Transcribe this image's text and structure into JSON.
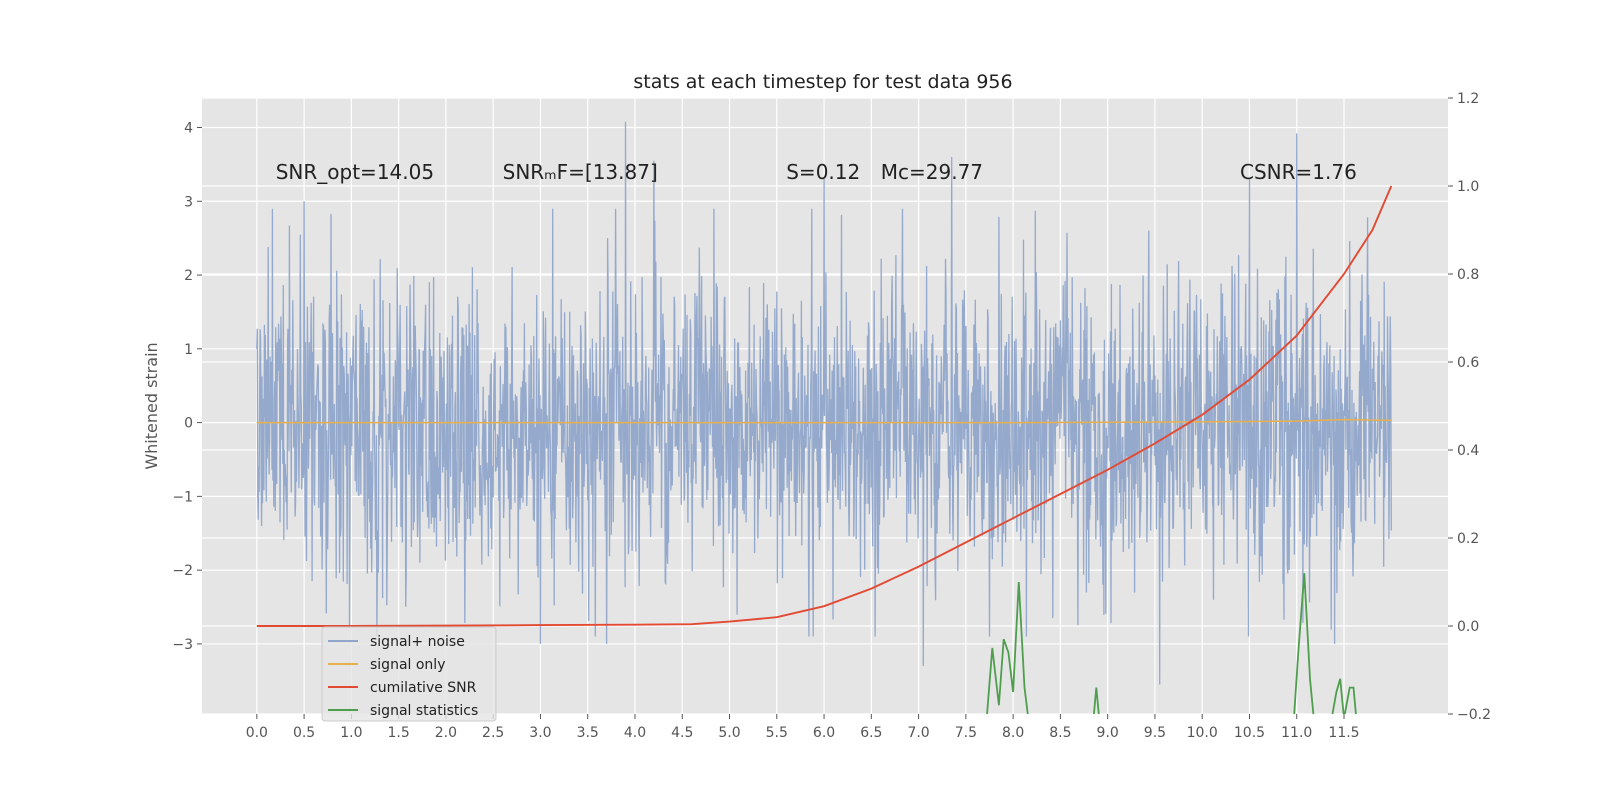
{
  "chart_data": {
    "type": "line",
    "title": "stats at each timestep for test data 956",
    "ylabel": "Whitened strain",
    "ylabel_right": "",
    "xlim": [
      -0.58,
      12.6
    ],
    "ylim": [
      -3.95,
      4.4
    ],
    "ylim_right": [
      -0.2,
      1.2
    ],
    "x_ticks": [
      0.0,
      0.5,
      1.0,
      1.5,
      2.0,
      2.5,
      3.0,
      3.5,
      4.0,
      4.5,
      5.0,
      5.5,
      6.0,
      6.5,
      7.0,
      7.5,
      8.0,
      8.5,
      9.0,
      9.5,
      10.0,
      10.5,
      11.0,
      11.5
    ],
    "x_tick_labels": [
      "0.0",
      "0.5",
      "1.0",
      "1.5",
      "2.0",
      "2.5",
      "3.0",
      "3.5",
      "4.0",
      "4.5",
      "5.0",
      "5.5",
      "6.0",
      "6.5",
      "7.0",
      "7.5",
      "8.0",
      "8.5",
      "9.0",
      "9.5",
      "10.0",
      "10.5",
      "11.0",
      "11.5"
    ],
    "y_ticks": [
      -3,
      -2,
      -1,
      0,
      1,
      2,
      3,
      4
    ],
    "y_tick_labels": [
      "−3",
      "−2",
      "−1",
      "0",
      "1",
      "2",
      "3",
      "4"
    ],
    "y_right_ticks": [
      -0.2,
      0.0,
      0.2,
      0.4,
      0.6,
      0.8,
      1.0,
      1.2
    ],
    "y_right_tick_labels": [
      "−0.2",
      "0.0",
      "0.2",
      "0.4",
      "0.6",
      "0.8",
      "1.0",
      "1.2"
    ],
    "grid": true,
    "legend_position": "lower-left",
    "annotations": [
      {
        "id": "snr-opt",
        "text": "SNR_opt=14.05",
        "x": 0.2,
        "y": 3.3
      },
      {
        "id": "snr-mf",
        "text": "SNRₘF=[13.87]",
        "x": 2.6,
        "y": 3.3
      },
      {
        "id": "s-value",
        "text": "S=0.12",
        "x": 5.6,
        "y": 3.3
      },
      {
        "id": "mc-value",
        "text": "Mᴄ=29.77",
        "x": 6.6,
        "y": 3.3
      },
      {
        "id": "csnr",
        "text": "CSNR=1.76",
        "x": 10.4,
        "y": 3.3
      }
    ],
    "series": [
      {
        "name": "signal+ noise",
        "axis": "left",
        "color": "#8fa5ca",
        "kind": "noise",
        "x_range": [
          0.0,
          12.0
        ],
        "amplitude_sigma": 1.0,
        "peak_points": [
          {
            "x": 0.5,
            "y": 3.0
          },
          {
            "x": 3.9,
            "y": 4.08
          },
          {
            "x": 4.2,
            "y": 3.55
          },
          {
            "x": 6.0,
            "y": 3.3
          },
          {
            "x": 7.35,
            "y": 3.6
          },
          {
            "x": 11.0,
            "y": 3.92
          },
          {
            "x": 10.5,
            "y": 3.3
          },
          {
            "x": 3.0,
            "y": -3.0
          },
          {
            "x": 3.7,
            "y": -3.0
          },
          {
            "x": 7.05,
            "y": -3.3
          },
          {
            "x": 9.55,
            "y": -3.55
          },
          {
            "x": 11.4,
            "y": -3.0
          }
        ]
      },
      {
        "name": "signal only",
        "axis": "left",
        "color": "#e8b04b",
        "x": [
          0.0,
          2.0,
          4.0,
          6.0,
          8.0,
          10.0,
          11.0,
          11.5,
          12.0
        ],
        "y": [
          0.0,
          0.0,
          0.0,
          0.0,
          0.0,
          0.01,
          0.02,
          0.04,
          0.03
        ]
      },
      {
        "name": "cumilative SNR",
        "axis": "right",
        "color": "#e24a33",
        "x": [
          0.0,
          1.0,
          2.0,
          3.0,
          4.0,
          4.6,
          5.0,
          5.5,
          6.0,
          6.5,
          7.0,
          7.5,
          8.0,
          8.5,
          9.0,
          9.5,
          10.0,
          10.5,
          11.0,
          11.5,
          11.8,
          12.0
        ],
        "y": [
          0.0,
          0.0,
          0.001,
          0.002,
          0.003,
          0.004,
          0.01,
          0.02,
          0.045,
          0.085,
          0.135,
          0.19,
          0.245,
          0.3,
          0.355,
          0.415,
          0.48,
          0.56,
          0.66,
          0.8,
          0.9,
          1.0
        ]
      },
      {
        "name": "signal statistics",
        "axis": "right",
        "color": "#4e9e4e",
        "segments": [
          {
            "x": [
              7.72,
              7.78,
              7.85,
              7.9,
              7.95,
              8.0,
              8.06,
              8.12,
              8.16
            ],
            "y": [
              -0.21,
              -0.05,
              -0.18,
              -0.03,
              -0.06,
              -0.15,
              0.1,
              -0.14,
              -0.21
            ]
          },
          {
            "x": [
              8.85,
              8.88,
              8.91
            ],
            "y": [
              -0.21,
              -0.14,
              -0.21
            ]
          },
          {
            "x": [
              10.97,
              11.02,
              11.08,
              11.14,
              11.18
            ],
            "y": [
              -0.21,
              -0.05,
              0.12,
              -0.12,
              -0.21
            ]
          },
          {
            "x": [
              11.37,
              11.42,
              11.46,
              11.5,
              11.56,
              11.6,
              11.63
            ],
            "y": [
              -0.21,
              -0.15,
              -0.12,
              -0.21,
              -0.14,
              -0.14,
              -0.21
            ]
          }
        ]
      }
    ]
  }
}
